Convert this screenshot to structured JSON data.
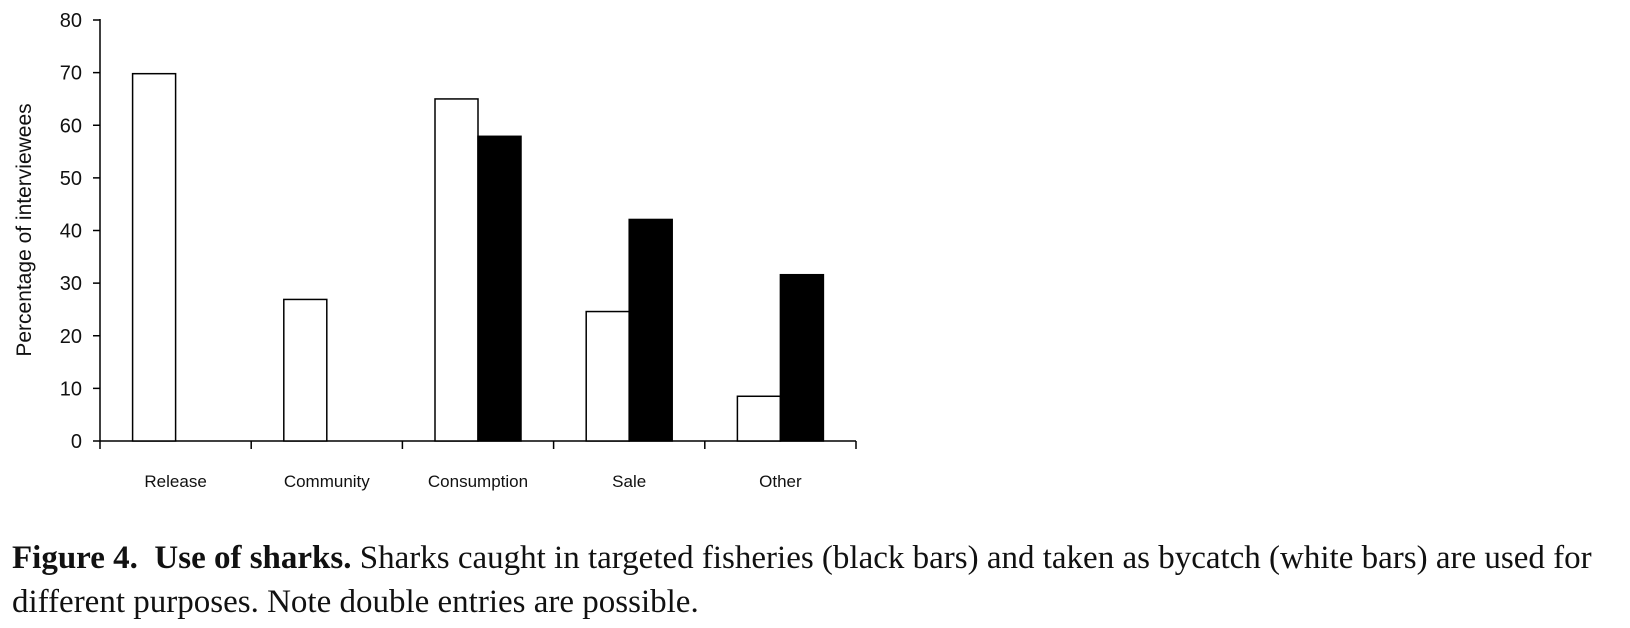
{
  "chart_data": {
    "type": "bar",
    "categories": [
      "Release",
      "Community",
      "Consumption",
      "Sale",
      "Other"
    ],
    "series": [
      {
        "fill": "#ffffff",
        "values": [
          69.8,
          26.9,
          65.0,
          24.6,
          8.5
        ]
      },
      {
        "fill": "#000000",
        "values": [
          null,
          null,
          57.9,
          42.1,
          31.6
        ]
      }
    ],
    "ylabel": "Percentage of interviewees",
    "ylim": [
      0,
      80
    ],
    "yticks": [
      0,
      10,
      20,
      30,
      40,
      50,
      60,
      70,
      80
    ],
    "grid": false
  },
  "caption": {
    "label": "Figure 4.",
    "title": "Use of sharks.",
    "text": "Sharks caught in targeted fisheries (black bars) and taken as bycatch (white bars) are used for different purposes. Note double entries are possible."
  }
}
